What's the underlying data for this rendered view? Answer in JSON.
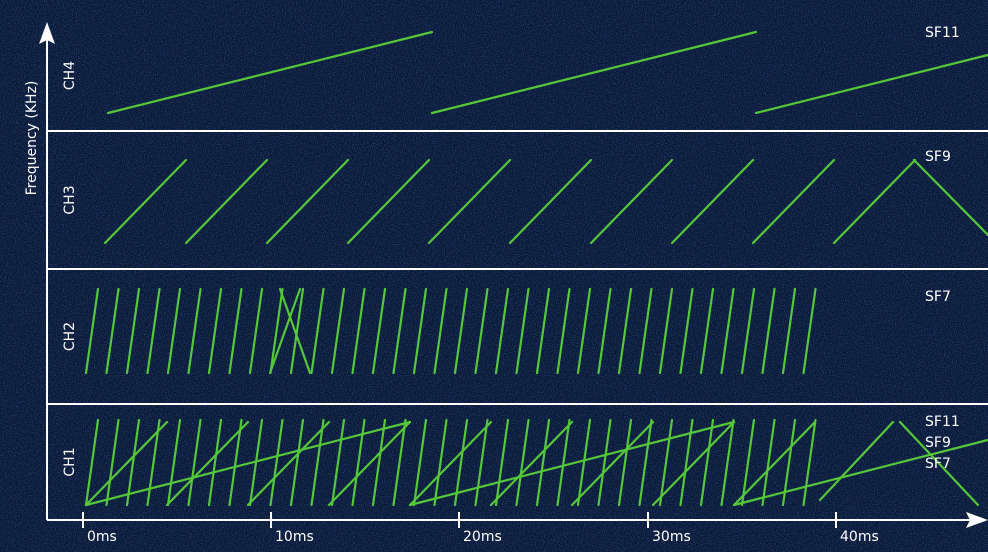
{
  "y_axis_label": "Frequency (KHz)",
  "x_ticks": [
    "0ms",
    "10ms",
    "20ms",
    "30ms",
    "40ms"
  ],
  "channels": [
    {
      "label": "CH4",
      "sf_labels": [
        "SF11"
      ]
    },
    {
      "label": "CH3",
      "sf_labels": [
        "SF9"
      ]
    },
    {
      "label": "CH2",
      "sf_labels": [
        "SF7"
      ]
    },
    {
      "label": "CH1",
      "sf_labels": [
        "SF11",
        "SF9",
        "SF7"
      ]
    }
  ]
}
